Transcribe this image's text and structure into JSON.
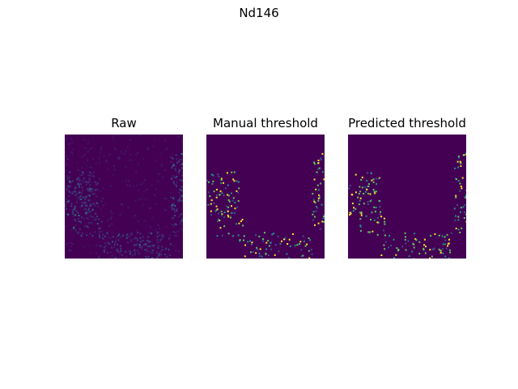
{
  "figure": {
    "title": "Nd146"
  },
  "chart_data": [
    {
      "type": "heatmap",
      "title": "Raw",
      "colormap": "viridis",
      "axes": "off",
      "content": "raw-intensity"
    },
    {
      "type": "heatmap",
      "title": "Manual threshold",
      "colormap": "viridis",
      "axes": "off",
      "content": "binary-mask"
    },
    {
      "type": "heatmap",
      "title": "Predicted threshold",
      "colormap": "viridis",
      "axes": "off",
      "content": "binary-mask"
    }
  ],
  "colors": {
    "background": "#440154",
    "low": "#3b528b",
    "mid": "#21918c",
    "high": "#5ec962",
    "peak": "#fde725"
  }
}
